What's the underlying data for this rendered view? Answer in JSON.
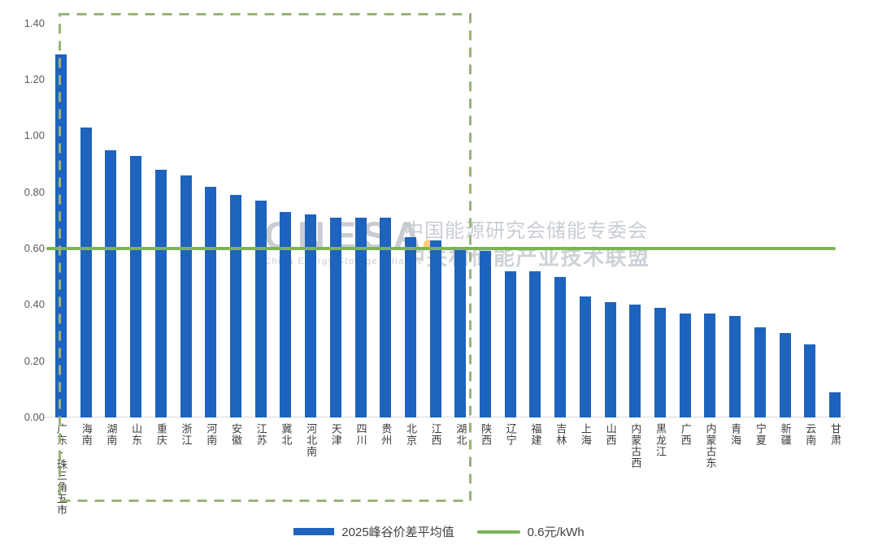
{
  "chart_data": {
    "type": "bar",
    "title": "",
    "categories": [
      "广东-珠三角五市",
      "海南",
      "湖南",
      "山东",
      "重庆",
      "浙江",
      "河南",
      "安徽",
      "江苏",
      "冀北",
      "河北南",
      "天津",
      "四川",
      "贵州",
      "北京",
      "江西",
      "湖北",
      "陕西",
      "辽宁",
      "福建",
      "吉林",
      "上海",
      "山西",
      "内蒙古西",
      "黑龙江",
      "广西",
      "内蒙古东",
      "青海",
      "宁夏",
      "新疆",
      "云南",
      "甘肃"
    ],
    "values": [
      1.29,
      1.03,
      0.95,
      0.93,
      0.88,
      0.86,
      0.82,
      0.79,
      0.77,
      0.73,
      0.72,
      0.71,
      0.71,
      0.71,
      0.64,
      0.63,
      0.6,
      0.59,
      0.52,
      0.52,
      0.5,
      0.43,
      0.41,
      0.4,
      0.39,
      0.37,
      0.37,
      0.36,
      0.32,
      0.3,
      0.26,
      0.09
    ],
    "series_label": "2025峰谷价差平均值",
    "reference_line": {
      "value": 0.6,
      "label": "0.6元/kWh"
    },
    "yticks": [
      "1.40",
      "1.20",
      "1.00",
      "0.80",
      "0.60",
      "0.40",
      "0.20",
      "0.00"
    ],
    "ylim": [
      0,
      1.4
    ],
    "xlabel": "",
    "ylabel": "",
    "grid": false,
    "sorted": "descending",
    "legend_position": "bottom",
    "highlight_box": {
      "encloses_categories_through": "湖北",
      "end_index_inclusive": 16
    }
  },
  "legend": {
    "bar_label": "2025峰谷价差平均值",
    "line_label": "0.6元/kWh"
  },
  "watermark": {
    "logo": "CNESA",
    "logo_subtitle": "China Energy Storage Alliance",
    "line1": "中国能源研究会储能专委会",
    "line2": "中关村储能产业技术联盟"
  },
  "colors": {
    "bar": "#1e63be",
    "reference_line": "#7cb355",
    "dashed_box": "#9ab377",
    "watermark": "#c9cdd3",
    "watermark2": "#ced2d8",
    "logo_accent": "#f5a623"
  }
}
